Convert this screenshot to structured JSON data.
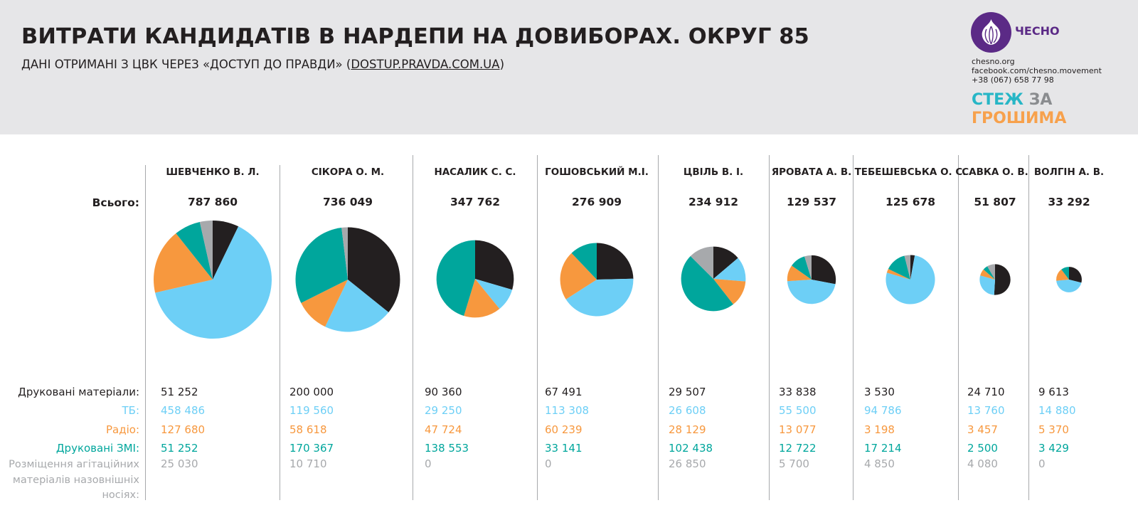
{
  "header": {
    "title": "ВИТРАТИ КАНДИДАТІВ В НАРДЕПИ НА ДОВИБОРАХ. ОКРУГ 85",
    "subtitle_prefix": "ДАНІ ОТРИМАНІ З ЦВК ЧЕРЕЗ «ДОСТУП ДО ПРАВДИ» (",
    "subtitle_link": "DOSTUP.PRAVDA.COM.UA",
    "subtitle_suffix": ")"
  },
  "branding": {
    "logo_text": "ЧЕСНО",
    "contact_site": "chesno.org",
    "contact_fb": "facebook.com/chesno.movement",
    "contact_phone": "+38 (067) 658 77 98",
    "project_word1": "СТЕЖ",
    "project_word2": "ЗА",
    "project_word3": "ГРОШИМА",
    "logo_color": "#5b2a86"
  },
  "row_labels": {
    "total": "Всього:",
    "print": "Друковані матеріали:",
    "tv": "ТБ:",
    "radio": "Радіо:",
    "press": "Друковані ЗМІ:",
    "outdoor": "Розміщення агітаційних матеріалів назовнішніх носіях:"
  },
  "colors": {
    "print": "#231f20",
    "tv": "#6dcff6",
    "radio": "#f7983e",
    "press": "#00a69c",
    "outdoor": "#a7a9ac"
  },
  "chart_data": {
    "type": "pie",
    "categories": [
      "Друковані матеріали",
      "ТБ",
      "Радіо",
      "Друковані ЗМІ",
      "Розміщення агітаційних матеріалів назовнішніх носіях"
    ],
    "candidates": [
      {
        "name": "ШЕВЧЕНКО В. Л.",
        "total": "787 860",
        "values": [
          51252,
          458486,
          127680,
          51252,
          25030
        ],
        "labels": [
          "51 252",
          "458 486",
          "127 680",
          "51 252",
          "25 030"
        ]
      },
      {
        "name": "СІКОРА О. М.",
        "total": "736 049",
        "values": [
          200000,
          119560,
          58618,
          170367,
          10710
        ],
        "labels": [
          "200 000",
          "119 560",
          "58 618",
          "170 367",
          "10 710"
        ]
      },
      {
        "name": "НАСАЛИК С. С.",
        "total": "347 762",
        "values": [
          90360,
          29250,
          47724,
          138553,
          0
        ],
        "labels": [
          "90 360",
          "29 250",
          "47 724",
          "138 553",
          "0"
        ]
      },
      {
        "name": "ГОШОВСЬКИЙ М.І.",
        "total": "276 909",
        "values": [
          67491,
          113308,
          60239,
          33141,
          0
        ],
        "labels": [
          "67 491",
          "113 308",
          "60 239",
          "33 141",
          "0"
        ]
      },
      {
        "name": "ЦВІЛЬ В. І.",
        "total": "234 912",
        "values": [
          29507,
          26608,
          28129,
          102438,
          26850
        ],
        "labels": [
          "29 507",
          "26 608",
          "28 129",
          "102 438",
          "26 850"
        ]
      },
      {
        "name": "ЯРОВАТА А. В.",
        "total": "129 537",
        "values": [
          33838,
          55500,
          13077,
          12722,
          5700
        ],
        "labels": [
          "33 838",
          "55 500",
          "13 077",
          "12 722",
          "5 700"
        ]
      },
      {
        "name": "ТЕБЕШЕВСЬКА О. С.",
        "total": "125 678",
        "values": [
          3530,
          94786,
          3198,
          17214,
          4850
        ],
        "labels": [
          "3 530",
          "94 786",
          "3 198",
          "17 214",
          "4 850"
        ]
      },
      {
        "name": "САВКА О. В.",
        "total": "51 807",
        "values": [
          24710,
          13760,
          3457,
          2500,
          4080
        ],
        "labels": [
          "24 710",
          "13 760",
          "3 457",
          "2 500",
          "4 080"
        ]
      },
      {
        "name": "ВОЛГІН А. В.",
        "total": "33 292",
        "values": [
          9613,
          14880,
          5370,
          3429,
          0
        ],
        "labels": [
          "9 613",
          "14 880",
          "5 370",
          "3 429",
          "0"
        ]
      }
    ]
  }
}
